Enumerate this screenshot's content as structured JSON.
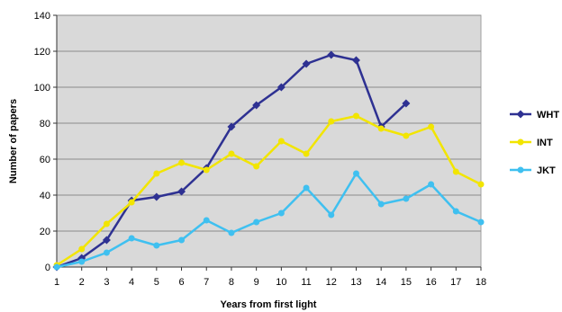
{
  "chart_data": {
    "type": "line",
    "title": "",
    "xlabel": "Years from first light",
    "ylabel": "Number of papers",
    "xlim": [
      1,
      18
    ],
    "ylim": [
      0,
      140
    ],
    "x_ticks": [
      1,
      2,
      3,
      4,
      5,
      6,
      7,
      8,
      9,
      10,
      11,
      12,
      13,
      14,
      15,
      16,
      17,
      18
    ],
    "y_ticks": [
      0,
      20,
      40,
      60,
      80,
      100,
      120,
      140
    ],
    "grid": "horizontal",
    "legend_position": "right",
    "series": [
      {
        "name": "WHT",
        "color": "#2e3192",
        "marker": "diamond",
        "x": [
          1,
          2,
          3,
          4,
          5,
          6,
          7,
          8,
          9,
          10,
          11,
          12,
          13,
          14,
          15
        ],
        "values": [
          0,
          5,
          15,
          37,
          39,
          42,
          55,
          78,
          90,
          100,
          113,
          118,
          115,
          78,
          91
        ]
      },
      {
        "name": "INT",
        "color": "#f2e500",
        "marker": "circle",
        "x": [
          1,
          2,
          3,
          4,
          5,
          6,
          7,
          8,
          9,
          10,
          11,
          12,
          13,
          14,
          15,
          16,
          17,
          18
        ],
        "values": [
          1,
          10,
          24,
          36,
          52,
          58,
          54,
          63,
          56,
          70,
          63,
          81,
          84,
          77,
          73,
          78,
          53,
          46
        ]
      },
      {
        "name": "JKT",
        "color": "#3fc0f0",
        "marker": "circle",
        "x": [
          1,
          2,
          3,
          4,
          5,
          6,
          7,
          8,
          9,
          10,
          11,
          12,
          13,
          14,
          15,
          16,
          17,
          18
        ],
        "values": [
          0,
          3,
          8,
          16,
          12,
          15,
          26,
          19,
          25,
          30,
          44,
          29,
          52,
          35,
          38,
          46,
          31,
          25
        ]
      }
    ]
  }
}
